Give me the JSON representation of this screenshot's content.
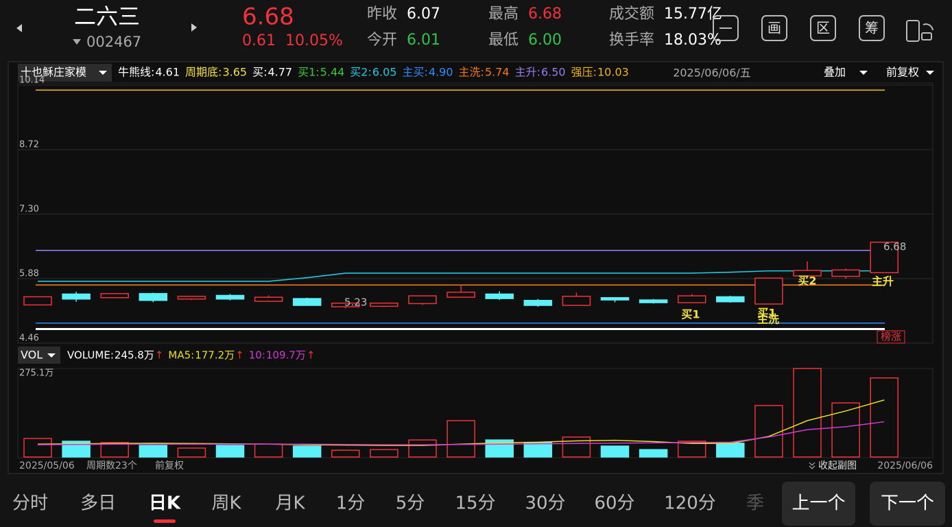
{
  "header": {
    "name": "二六三",
    "code": "002467",
    "price": "6.68",
    "change": "0.61",
    "change_pct": "10.05%",
    "stats": [
      {
        "label": "昨收",
        "value": "6.07",
        "color": "#ffffff"
      },
      {
        "label": "今开",
        "value": "6.01",
        "color": "#2ec44a"
      },
      {
        "label": "最高",
        "value": "6.68",
        "color": "#f0323c"
      },
      {
        "label": "最低",
        "value": "6.00",
        "color": "#2ec44a"
      },
      {
        "label": "成交额",
        "value": "15.77亿",
        "color": "#ffffff"
      },
      {
        "label": "换手率",
        "value": "18.03%",
        "color": "#ffffff"
      }
    ],
    "tools": [
      "画",
      "区",
      "筹"
    ]
  },
  "indicator_bar": {
    "indicator": "十也稣庄家模",
    "date": "2025/06/06/五",
    "overlay": "叠加",
    "adjust": "前复权"
  },
  "chart_data": [
    {
      "type": "candlestick",
      "categories": [
        "2025/05/06",
        null,
        null,
        null,
        null,
        null,
        null,
        null,
        null,
        null,
        null,
        null,
        null,
        null,
        null,
        null,
        null,
        null,
        null,
        null,
        null,
        null,
        "2025/06/06"
      ],
      "open": [
        5.3,
        5.54,
        5.46,
        5.55,
        5.43,
        5.51,
        5.38,
        5.44,
        5.26,
        5.27,
        5.33,
        5.47,
        5.54,
        5.4,
        5.29,
        5.46,
        5.41,
        5.35,
        5.48,
        5.32,
        5.94,
        5.93,
        6.01
      ],
      "high": [
        5.49,
        5.59,
        5.56,
        5.57,
        5.5,
        5.54,
        5.51,
        5.46,
        5.35,
        5.35,
        5.51,
        5.74,
        5.6,
        5.43,
        5.57,
        5.47,
        5.43,
        5.54,
        5.5,
        5.89,
        6.26,
        6.1,
        6.68
      ],
      "low": [
        5.29,
        5.37,
        5.45,
        5.36,
        5.41,
        5.4,
        5.37,
        5.28,
        5.23,
        5.25,
        5.3,
        5.46,
        5.41,
        5.26,
        5.28,
        5.36,
        5.33,
        5.34,
        5.35,
        5.31,
        5.94,
        5.88,
        6.0
      ],
      "close": [
        5.48,
        5.43,
        5.55,
        5.4,
        5.49,
        5.43,
        5.47,
        5.29,
        5.34,
        5.34,
        5.5,
        5.58,
        5.44,
        5.29,
        5.49,
        5.41,
        5.35,
        5.5,
        5.37,
        5.89,
        6.06,
        6.07,
        6.68
      ],
      "up_color": "#f0323c",
      "down_color": "#5ef0f8",
      "ylim": [
        4.46,
        10.14
      ],
      "yticks": [
        4.46,
        5.88,
        {
          "value": 7.3,
          "label": "7.30"
        },
        8.72,
        10.14
      ],
      "grid": true,
      "indicators": [
        {
          "name": "牛熊线:",
          "value": 4.61,
          "color": "#ffffff",
          "line": false
        },
        {
          "name": "周期底:",
          "value": 3.65,
          "color": "#f0e040",
          "line": false
        },
        {
          "name": "买:",
          "value": 4.77,
          "color": "#ffffff",
          "line": true
        },
        {
          "name": "买1:",
          "value": 5.44,
          "color": "#3cc83c",
          "line": false
        },
        {
          "name": "买2:",
          "value": 6.05,
          "color": "#22c8e6",
          "line": false,
          "values": [
            5.82,
            5.82,
            5.82,
            5.82,
            5.82,
            5.82,
            5.82,
            5.9,
            6.0,
            6.0,
            6.0,
            6.0,
            6.0,
            6.0,
            6.0,
            6.0,
            6.0,
            6.0,
            6.02,
            6.05,
            6.05,
            6.05,
            6.05
          ]
        },
        {
          "name": "主买:",
          "value": 4.9,
          "value_label": "4.90",
          "color": "#2f8cff",
          "line": true
        },
        {
          "name": "主洗:",
          "value": 5.74,
          "color": "#f07a1a",
          "line": true
        },
        {
          "name": "主升:",
          "value": 6.5,
          "value_label": "6.50",
          "color": "#9a7ce8",
          "line": true
        },
        {
          "name": "强压:",
          "value": 10.03,
          "color": "#f0b31a",
          "line": true
        }
      ],
      "signals": [
        "买1",
        "买1",
        "主洗",
        "买2",
        "主升"
      ],
      "badge": "榜涨"
    },
    {
      "type": "bar",
      "panel": "VOL",
      "values": [
        57.6,
        49,
        44.8,
        36,
        27.7,
        36,
        40.5,
        34,
        21,
        23,
        53,
        113,
        53,
        45,
        62,
        34,
        23,
        49,
        43,
        160,
        275.1,
        168,
        245.8
      ],
      "name": "VOLUME:",
      "current_label": "245.8万",
      "trend": "↑",
      "ylim": [
        0,
        275.1
      ],
      "yticks": [
        {
          "value": 275.1,
          "label": "275.1万"
        }
      ],
      "series": [
        {
          "name": "MA5:",
          "color": "#e8e020",
          "current_label": "177.2万",
          "trend": "↑",
          "values": [
            40,
            41,
            42,
            43,
            42,
            41,
            40,
            38,
            37,
            36,
            36,
            40,
            44,
            46,
            50,
            52,
            48,
            42,
            42,
            64,
            113,
            143,
            177.2
          ]
        },
        {
          "name": "10:",
          "color": "#d23ad8",
          "current_label": "109.7万",
          "trend": "↑",
          "values": [
            38,
            39,
            40,
            40,
            40,
            40,
            40,
            40,
            39,
            38,
            38,
            39,
            40,
            41,
            42,
            43,
            44,
            45,
            46,
            62,
            85,
            94,
            109.7
          ]
        }
      ]
    }
  ],
  "footer": {
    "periods": "周期数23个",
    "adjust": "前复权",
    "collapse": "收起副图"
  },
  "tabs": [
    {
      "text": "分时"
    },
    {
      "text": "多日"
    },
    {
      "text": "日K",
      "selected": true
    },
    {
      "text": "周K"
    },
    {
      "text": "月K"
    },
    {
      "text": "1分"
    },
    {
      "text": "5分"
    },
    {
      "text": "15分"
    },
    {
      "text": "30分"
    },
    {
      "text": "60分"
    },
    {
      "text": "120分"
    },
    {
      "text": "季",
      "faded": true
    }
  ],
  "buttons": [
    "上一个",
    "下一个"
  ]
}
